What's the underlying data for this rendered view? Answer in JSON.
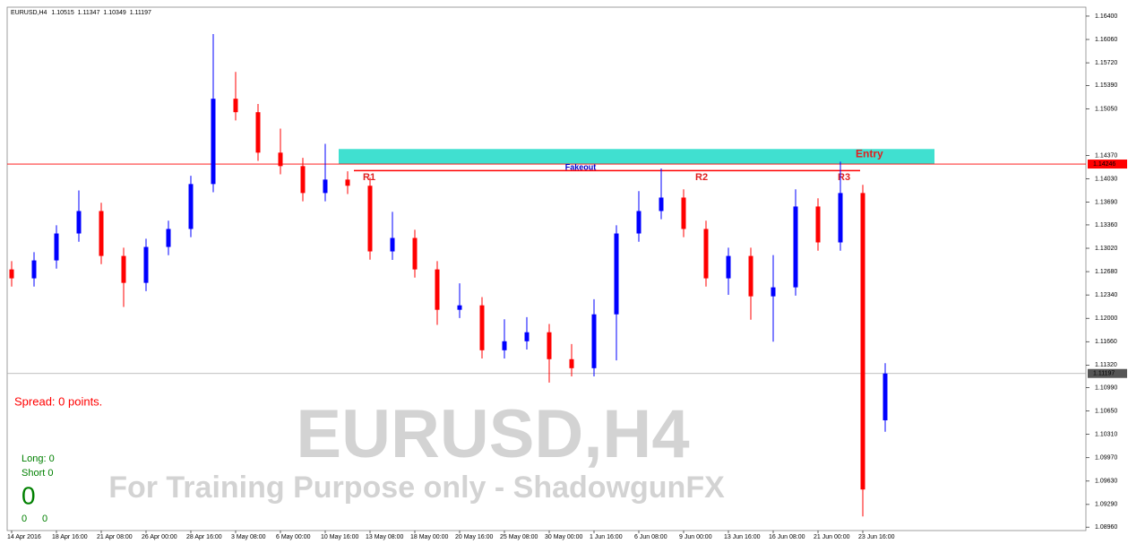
{
  "chart_data": {
    "type": "candlestick",
    "title": "EURUSD,H4",
    "watermark_subtitle": "For Training Purpose only - ShadowgunFX",
    "spread": "Spread: 0 points.",
    "long": "Long: 0",
    "short": "Short 0",
    "counter": "0",
    "counter_sub": [
      "0",
      "0"
    ],
    "up_color": "#0000ff",
    "down_color": "#ff0000",
    "categories": [
      "14 Apr 2016",
      null,
      "18 Apr 16:00",
      null,
      "21 Apr 08:00",
      null,
      "26 Apr 00:00",
      null,
      "28 Apr 16:00",
      null,
      "3 May 08:00",
      null,
      "6 May 00:00",
      null,
      "10 May 16:00",
      null,
      "13 May 08:00",
      null,
      "18 May 00:00",
      null,
      "20 May 16:00",
      null,
      "25 May 08:00",
      null,
      "30 May 00:00",
      null,
      "1 Jun 16:00",
      null,
      "6 Jun 08:00",
      null,
      "9 Jun 00:00",
      null,
      "13 Jun 16:00",
      null,
      "16 Jun 08:00",
      null,
      "21 Jun 00:00",
      null,
      "23 Jun 16:00",
      null
    ],
    "open": [
      1.12712,
      1.12582,
      1.12843,
      1.13235,
      1.13562,
      1.12908,
      1.12516,
      1.13039,
      1.13301,
      1.13955,
      1.15197,
      1.15001,
      1.14412,
      1.14216,
      1.13824,
      1.1402,
      1.1393,
      1.12974,
      1.1317,
      1.12712,
      1.12124,
      1.12189,
      1.11535,
      1.11666,
      1.11797,
      1.11405,
      1.11274,
      1.12058,
      1.13235,
      1.13562,
      1.13758,
      1.13301,
      1.12582,
      1.12908,
      1.1232,
      1.12451,
      1.13628,
      1.13105,
      1.13824,
      1.10515
    ],
    "high": [
      1.12832,
      1.12963,
      1.13355,
      1.13862,
      1.13682,
      1.13028,
      1.13159,
      1.13421,
      1.14075,
      1.16138,
      1.15587,
      1.15121,
      1.14762,
      1.14336,
      1.1454,
      1.1414,
      1.1405,
      1.1355,
      1.1329,
      1.12832,
      1.12509,
      1.12309,
      1.11986,
      1.12017,
      1.11917,
      1.11625,
      1.12278,
      1.13355,
      1.13852,
      1.14182,
      1.13878,
      1.13421,
      1.13028,
      1.13028,
      1.12921,
      1.13878,
      1.13748,
      1.14281,
      1.13944,
      1.11347
    ],
    "low": [
      1.12462,
      1.12462,
      1.12723,
      1.13115,
      1.12788,
      1.12166,
      1.12396,
      1.12919,
      1.13181,
      1.13835,
      1.14881,
      1.14292,
      1.14096,
      1.13704,
      1.13704,
      1.1381,
      1.12854,
      1.1285,
      1.12592,
      1.11904,
      1.12004,
      1.11415,
      1.11415,
      1.11546,
      1.11065,
      1.11154,
      1.11154,
      1.11388,
      1.13115,
      1.13442,
      1.13181,
      1.12462,
      1.12342,
      1.1198,
      1.1166,
      1.12331,
      1.12985,
      1.12985,
      1.09116,
      1.10349
    ],
    "close": [
      1.12582,
      1.12843,
      1.13235,
      1.13562,
      1.12908,
      1.12516,
      1.13039,
      1.13301,
      1.13955,
      1.15197,
      1.15001,
      1.14412,
      1.14216,
      1.13824,
      1.1402,
      1.1393,
      1.12974,
      1.1317,
      1.12712,
      1.12124,
      1.12189,
      1.11535,
      1.11666,
      1.11797,
      1.11405,
      1.11274,
      1.12058,
      1.13235,
      1.13562,
      1.13758,
      1.13301,
      1.12582,
      1.12908,
      1.1232,
      1.12451,
      1.13628,
      1.13105,
      1.13824,
      1.09508,
      1.11197
    ],
    "ylim": [
      1.0891,
      1.1653
    ],
    "yticks": [
      {
        "value": 1.164,
        "label": "1.16400"
      },
      {
        "value": 1.1606,
        "label": "1.16060"
      },
      {
        "value": 1.1572,
        "label": "1.15720"
      },
      {
        "value": 1.1539,
        "label": "1.15390"
      },
      {
        "value": 1.1505,
        "label": "1.15050"
      },
      {
        "value": 1.1437,
        "label": "1.14370"
      },
      {
        "value": 1.1403,
        "label": "1.14030"
      },
      {
        "value": 1.1369,
        "label": "1.13690"
      },
      {
        "value": 1.1336,
        "label": "1.13360"
      },
      {
        "value": 1.1302,
        "label": "1.13020"
      },
      {
        "value": 1.1268,
        "label": "1.12680"
      },
      {
        "value": 1.1234,
        "label": "1.12340"
      },
      {
        "value": 1.12,
        "label": "1.12000"
      },
      {
        "value": 1.1166,
        "label": "1.11660"
      },
      {
        "value": 1.1132,
        "label": "1.11320"
      },
      {
        "value": 1.1099,
        "label": "1.10990"
      },
      {
        "value": 1.1065,
        "label": "1.10650"
      },
      {
        "value": 1.1031,
        "label": "1.10310"
      },
      {
        "value": 1.0997,
        "label": "1.09970"
      },
      {
        "value": 1.0963,
        "label": "1.09630"
      },
      {
        "value": 1.0929,
        "label": "1.09290"
      },
      {
        "value": 1.0896,
        "label": "1.08960"
      }
    ],
    "entry_zone": {
      "range": [
        1.14246,
        1.14465
      ],
      "label": "Entry",
      "color": "#40e0d0"
    },
    "level_line": {
      "value": 1.14246,
      "color": "#ff0000"
    },
    "bid_line": {
      "value": 1.11197,
      "color": "#aaaaaa"
    },
    "resistance": {
      "value": 1.14151,
      "labels": [
        "R1",
        "R2",
        "R3"
      ],
      "annotation": "Fakeout"
    }
  }
}
